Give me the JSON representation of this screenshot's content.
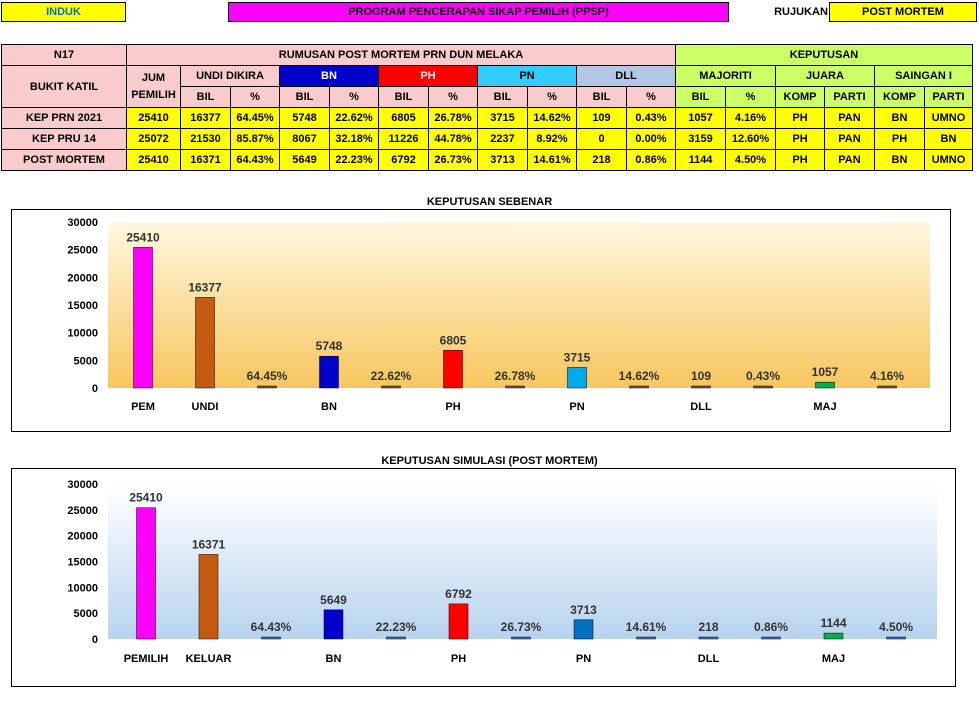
{
  "header": {
    "induk": "INDUK",
    "program": "PROGRAM PENCERAPAN SIKAP PEMILIH (PPSP)",
    "rujukan_label": "RUJUKAN",
    "rujukan_value": "POST MORTEM"
  },
  "table": {
    "seat_code": "N17",
    "seat_name": "BUKIT KATIL",
    "group_title": "RUMUSAN POST MORTEM PRN DUN MELAKA",
    "keputusan_title": "KEPUTUSAN",
    "jum_pemilih": "JUM PEMILIH",
    "undi_dikira": "UNDI DIKIRA",
    "bn": "BN",
    "ph": "PH",
    "pn": "PN",
    "dll": "DLL",
    "majoriti": "MAJORITI",
    "juara": "JUARA",
    "saingan": "SAINGAN I",
    "bil": "BIL",
    "pct": "%",
    "komp": "KOMP",
    "parti": "PARTI",
    "rows": [
      {
        "label": "KEP PRN 2021",
        "cells": [
          "25410",
          "16377",
          "64.45%",
          "5748",
          "22.62%",
          "6805",
          "26.78%",
          "3715",
          "14.62%",
          "109",
          "0.43%",
          "1057",
          "4.16%",
          "PH",
          "PAN",
          "BN",
          "UMNO"
        ]
      },
      {
        "label": "KEP PRU 14",
        "cells": [
          "25072",
          "21530",
          "85.87%",
          "8067",
          "32.18%",
          "11226",
          "44.78%",
          "2237",
          "8.92%",
          "0",
          "0.00%",
          "3159",
          "12.60%",
          "PH",
          "PAN",
          "PH",
          "BN"
        ]
      },
      {
        "label": "POST MORTEM",
        "cells": [
          "25410",
          "16371",
          "64.43%",
          "5649",
          "22.23%",
          "6792",
          "26.73%",
          "3713",
          "14.61%",
          "218",
          "0.86%",
          "1144",
          "4.50%",
          "PH",
          "PAN",
          "BN",
          "UMNO"
        ]
      }
    ]
  },
  "chart_data": [
    {
      "type": "bar",
      "title": "KEPUTUSAN SEBENAR",
      "ylim": [
        0,
        30000
      ],
      "yticks": [
        0,
        5000,
        10000,
        15000,
        20000,
        25000,
        30000
      ],
      "bars": [
        {
          "value": 25410,
          "label": "25410",
          "color": "#ff00ff",
          "category": "PEM"
        },
        {
          "value": 16377,
          "label": "16377",
          "color": "#c55a11",
          "category": "UNDI"
        },
        {
          "value": 64.45,
          "label": "64.45%",
          "color": "#7f6000",
          "category": ""
        },
        {
          "value": 5748,
          "label": "5748",
          "color": "#0000cc",
          "category": "BN"
        },
        {
          "value": 22.62,
          "label": "22.62%",
          "color": "#7f6000",
          "category": ""
        },
        {
          "value": 6805,
          "label": "6805",
          "color": "#ff0000",
          "category": "PH"
        },
        {
          "value": 26.78,
          "label": "26.78%",
          "color": "#7f6000",
          "category": ""
        },
        {
          "value": 3715,
          "label": "3715",
          "color": "#00a8f0",
          "category": "PN"
        },
        {
          "value": 14.62,
          "label": "14.62%",
          "color": "#7f6000",
          "category": ""
        },
        {
          "value": 109,
          "label": "109",
          "color": "#7f6000",
          "category": "DLL"
        },
        {
          "value": 0.43,
          "label": "0.43%",
          "color": "#7f6000",
          "category": ""
        },
        {
          "value": 1057,
          "label": "1057",
          "color": "#00b050",
          "category": "MAJ"
        },
        {
          "value": 4.16,
          "label": "4.16%",
          "color": "#7f6000",
          "category": ""
        }
      ],
      "background": [
        "#fff8e0",
        "#f7c65f"
      ]
    },
    {
      "type": "bar",
      "title": "KEPUTUSAN SIMULASI (POST MORTEM)",
      "ylim": [
        0,
        30000
      ],
      "yticks": [
        0,
        5000,
        10000,
        15000,
        20000,
        25000,
        30000
      ],
      "bars": [
        {
          "value": 25410,
          "label": "25410",
          "color": "#ff00ff",
          "category": "PEMILIH"
        },
        {
          "value": 16371,
          "label": "16371",
          "color": "#c55a11",
          "category": "KELUAR"
        },
        {
          "value": 64.43,
          "label": "64.43%",
          "color": "#4472c4",
          "category": ""
        },
        {
          "value": 5649,
          "label": "5649",
          "color": "#0000cc",
          "category": "BN"
        },
        {
          "value": 22.23,
          "label": "22.23%",
          "color": "#4472c4",
          "category": ""
        },
        {
          "value": 6792,
          "label": "6792",
          "color": "#ff0000",
          "category": "PH"
        },
        {
          "value": 26.73,
          "label": "26.73%",
          "color": "#4472c4",
          "category": ""
        },
        {
          "value": 3713,
          "label": "3713",
          "color": "#0070c0",
          "category": "PN"
        },
        {
          "value": 14.61,
          "label": "14.61%",
          "color": "#4472c4",
          "category": ""
        },
        {
          "value": 218,
          "label": "218",
          "color": "#4472c4",
          "category": "DLL"
        },
        {
          "value": 0.86,
          "label": "0.86%",
          "color": "#4472c4",
          "category": ""
        },
        {
          "value": 1144,
          "label": "1144",
          "color": "#00b050",
          "category": "MAJ"
        },
        {
          "value": 4.5,
          "label": "4.50%",
          "color": "#4472c4",
          "category": ""
        }
      ],
      "background": [
        "#ffffff",
        "#b8d3ee"
      ]
    }
  ]
}
